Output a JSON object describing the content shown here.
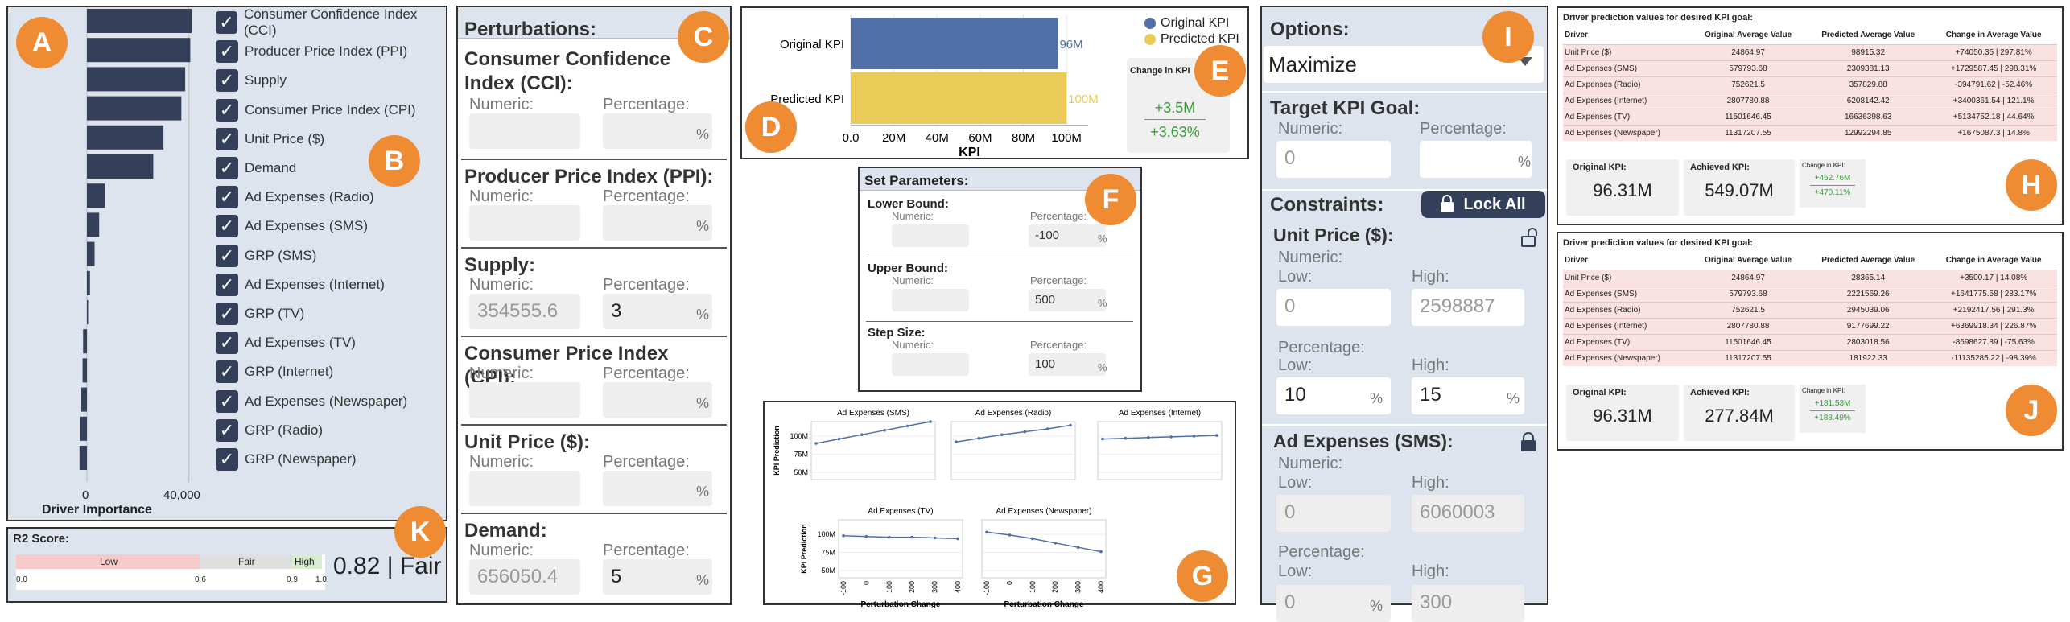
{
  "badges": {
    "a": "A",
    "b": "B",
    "c": "C",
    "d": "D",
    "e": "E",
    "f": "F",
    "g": "G",
    "h": "H",
    "i": "I",
    "j": "J",
    "k": "K"
  },
  "importance": {
    "xlabel": "Driver Importance",
    "ticks": [
      "0",
      "40,000"
    ],
    "drivers": [
      {
        "label": "Consumer Confidence Index (CCI)",
        "value": 41000
      },
      {
        "label": "Producer Price Index (PPI)",
        "value": 40500
      },
      {
        "label": "Supply",
        "value": 38500
      },
      {
        "label": "Consumer Price Index (CPI)",
        "value": 37000
      },
      {
        "label": "Unit Price ($)",
        "value": 30000
      },
      {
        "label": "Demand",
        "value": 26000
      },
      {
        "label": "Ad Expenses (Radio)",
        "value": 7000
      },
      {
        "label": "Ad Expenses (SMS)",
        "value": 4800
      },
      {
        "label": "GRP (SMS)",
        "value": 3000
      },
      {
        "label": "Ad Expenses (Internet)",
        "value": 1200
      },
      {
        "label": "GRP (TV)",
        "value": 400
      },
      {
        "label": "Ad Expenses (TV)",
        "value": -1500
      },
      {
        "label": "GRP (Internet)",
        "value": -1700
      },
      {
        "label": "Ad Expenses (Newspaper)",
        "value": -2200
      },
      {
        "label": "GRP (Radio)",
        "value": -2600
      },
      {
        "label": "GRP (Newspaper)",
        "value": -2900
      }
    ]
  },
  "r2": {
    "title": "R2 Score:",
    "low": "Low",
    "fair": "Fair",
    "high": "High",
    "ticks": [
      "0.0",
      "0.6",
      "0.9",
      "1.0"
    ],
    "score": "0.82 | Fair",
    "value": 0.82
  },
  "perturbations": {
    "title": "Perturbations:",
    "numeric": "Numeric:",
    "percentage": "Percentage:",
    "pct": "%",
    "items": [
      {
        "name": "Consumer Confidence Index (CCI):",
        "numeric": "",
        "percentage": ""
      },
      {
        "name": "Producer Price Index (PPI):",
        "numeric": "",
        "percentage": ""
      },
      {
        "name": "Supply:",
        "numeric": "354555.6",
        "percentage": "3"
      },
      {
        "name": "Consumer Price Index (CPI):",
        "numeric": "",
        "percentage": ""
      },
      {
        "name": "Unit Price ($):",
        "numeric": "",
        "percentage": ""
      },
      {
        "name": "Demand:",
        "numeric": "656050.4",
        "percentage": "5"
      }
    ]
  },
  "kpi_chart": {
    "legend": [
      "Original KPI",
      "Predicted KPI"
    ],
    "rows": [
      "Original KPI",
      "Predicted KPI"
    ],
    "row_labels": [
      "96M",
      "100M"
    ],
    "xticks": [
      "0.0",
      "20M",
      "40M",
      "60M",
      "80M",
      "100M"
    ],
    "xlabel": "KPI",
    "change_title": "Change in KPI",
    "change_abs": "+3.5M",
    "change_pct": "+3.63%",
    "colors": {
      "original": "#4f6fa6",
      "predicted": "#ebcb57"
    }
  },
  "chart_data": [
    {
      "type": "bar",
      "title": "",
      "categories": [
        "Original KPI",
        "Predicted KPI"
      ],
      "values": [
        96,
        100
      ],
      "xlabel": "KPI",
      "xlim": [
        0,
        110
      ]
    },
    {
      "type": "line",
      "title": "Ad Expenses (SMS)",
      "x": [
        -100,
        0,
        100,
        200,
        300,
        400
      ],
      "y": [
        90,
        96,
        102,
        108,
        114,
        120
      ]
    },
    {
      "type": "line",
      "title": "Ad Expenses (Radio)",
      "x": [
        -100,
        0,
        100,
        200,
        300,
        400
      ],
      "y": [
        92,
        97,
        102,
        106,
        110,
        115
      ]
    },
    {
      "type": "line",
      "title": "Ad Expenses (Internet)",
      "x": [
        -100,
        0,
        100,
        200,
        300,
        400
      ],
      "y": [
        96,
        97,
        98,
        99,
        100,
        101
      ]
    },
    {
      "type": "line",
      "title": "Ad Expenses (TV)",
      "x": [
        -100,
        0,
        100,
        200,
        300,
        400
      ],
      "y": [
        98,
        97,
        96,
        96,
        95,
        94
      ]
    },
    {
      "type": "line",
      "title": "Ad Expenses (Newspaper)",
      "x": [
        -100,
        0,
        100,
        200,
        300,
        400
      ],
      "y": [
        103,
        99,
        94,
        88,
        82,
        76
      ]
    }
  ],
  "params": {
    "title": "Set Parameters:",
    "numeric": "Numeric:",
    "percentage": "Percentage:",
    "pct": "%",
    "lower": {
      "label": "Lower Bound:",
      "value": "-100"
    },
    "upper": {
      "label": "Upper Bound:",
      "value": "500"
    },
    "step": {
      "label": "Step Size:",
      "value": "100"
    }
  },
  "small_multiples": {
    "ylabel": "KPI Prediction",
    "xlabel": "Perturbation Change",
    "yticks": [
      "100M",
      "75M",
      "50M"
    ],
    "xticks": [
      "-100",
      "0",
      "100",
      "200",
      "300",
      "400"
    ]
  },
  "options": {
    "title": "Options:",
    "mode": "Maximize",
    "target_title": "Target KPI Goal:",
    "numeric": "Numeric:",
    "percentage": "Percentage:",
    "pct": "%",
    "target_numeric": "0",
    "constraints_title": "Constraints:",
    "lock_all": "Lock All",
    "low": "Low:",
    "high": "High:",
    "unit_price": {
      "name": "Unit Price ($):",
      "num_low": "0",
      "num_high": "2598887",
      "pct_low": "10",
      "pct_high": "15"
    },
    "ad_sms": {
      "name": "Ad Expenses (SMS):",
      "num_low": "0",
      "num_high": "6060003",
      "pct_low": "0",
      "pct_high": "300"
    }
  },
  "result_h": {
    "title": "Driver prediction values for desired KPI goal:",
    "headers": [
      "Driver",
      "Original Average Value",
      "Predicted Average Value",
      "Change in Average Value"
    ],
    "rows": [
      [
        "Unit Price ($)",
        "24864.97",
        "98915.32",
        "+74050.35 | 297.81%"
      ],
      [
        "Ad Expenses (SMS)",
        "579793.68",
        "2309381.13",
        "+1729587.45 | 298.31%"
      ],
      [
        "Ad Expenses (Radio)",
        "752621.5",
        "357829.88",
        "-394791.62 | -52.46%"
      ],
      [
        "Ad Expenses (Internet)",
        "2807780.88",
        "6208142.42",
        "+3400361.54 | 121.1%"
      ],
      [
        "Ad Expenses (TV)",
        "11501646.45",
        "16636398.63",
        "+5134752.18 | 44.64%"
      ],
      [
        "Ad Expenses (Newspaper)",
        "11317207.55",
        "12992294.85",
        "+1675087.3 | 14.8%"
      ]
    ],
    "orig_title": "Original KPI:",
    "orig_value": "96.31M",
    "ach_title": "Achieved KPI:",
    "ach_value": "549.07M",
    "chg_title": "Change in KPI:",
    "chg_abs": "+452.76M",
    "chg_pct": "+470.11%"
  },
  "result_j": {
    "title": "Driver prediction values for desired KPI goal:",
    "headers": [
      "Driver",
      "Original Average Value",
      "Predicted Average Value",
      "Change in Average Value"
    ],
    "rows": [
      [
        "Unit Price ($)",
        "24864.97",
        "28365.14",
        "+3500.17 | 14.08%"
      ],
      [
        "Ad Expenses (SMS)",
        "579793.68",
        "2221569.26",
        "+1641775.58 | 283.17%"
      ],
      [
        "Ad Expenses (Radio)",
        "752621.5",
        "2945039.06",
        "+2192417.56 | 291.3%"
      ],
      [
        "Ad Expenses (Internet)",
        "2807780.88",
        "9177699.22",
        "+6369918.34 | 226.87%"
      ],
      [
        "Ad Expenses (TV)",
        "11501646.45",
        "2803018.56",
        "-8698627.89 | -75.63%"
      ],
      [
        "Ad Expenses (Newspaper)",
        "11317207.55",
        "181922.33",
        "-11135285.22 | -98.39%"
      ]
    ],
    "orig_title": "Original KPI:",
    "orig_value": "96.31M",
    "ach_title": "Achieved KPI:",
    "ach_value": "277.84M",
    "chg_title": "Change in KPI:",
    "chg_abs": "+181.53M",
    "chg_pct": "+188.49%"
  }
}
